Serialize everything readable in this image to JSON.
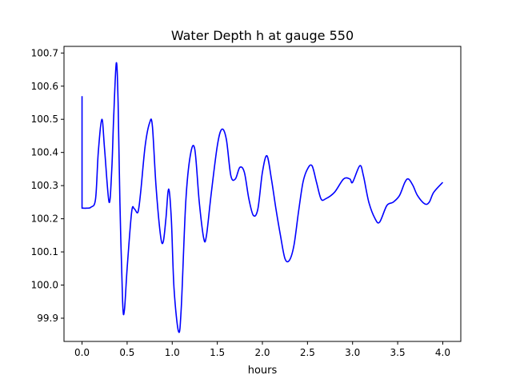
{
  "chart_data": {
    "type": "line",
    "title": "Water Depth h at gauge 550",
    "xlabel": "hours",
    "ylabel": "",
    "xlim": [
      -0.2,
      4.2
    ],
    "ylim": [
      99.83,
      100.72
    ],
    "xticks": [
      0.0,
      0.5,
      1.0,
      1.5,
      2.0,
      2.5,
      3.0,
      3.5,
      4.0
    ],
    "xtick_labels": [
      "0.0",
      "0.5",
      "1.0",
      "1.5",
      "2.0",
      "2.5",
      "3.0",
      "3.5",
      "4.0"
    ],
    "yticks": [
      99.9,
      100.0,
      100.1,
      100.2,
      100.3,
      100.4,
      100.5,
      100.6,
      100.7
    ],
    "ytick_labels": [
      "99.9",
      "100.0",
      "100.1",
      "100.2",
      "100.3",
      "100.4",
      "100.5",
      "100.6",
      "100.7"
    ],
    "grid": false,
    "series": [
      {
        "color": "#0000ff",
        "x": [
          0.0,
          0.0,
          0.05,
          0.1,
          0.15,
          0.18,
          0.22,
          0.25,
          0.3,
          0.33,
          0.35,
          0.38,
          0.4,
          0.42,
          0.45,
          0.47,
          0.5,
          0.55,
          0.58,
          0.62,
          0.65,
          0.7,
          0.75,
          0.78,
          0.82,
          0.87,
          0.9,
          0.93,
          0.96,
          0.99,
          1.02,
          1.07,
          1.1,
          1.15,
          1.2,
          1.25,
          1.3,
          1.35,
          1.38,
          1.43,
          1.5,
          1.55,
          1.6,
          1.65,
          1.7,
          1.75,
          1.8,
          1.85,
          1.9,
          1.95,
          2.0,
          2.05,
          2.1,
          2.15,
          2.2,
          2.25,
          2.3,
          2.35,
          2.4,
          2.45,
          2.5,
          2.55,
          2.6,
          2.65,
          2.7,
          2.8,
          2.9,
          2.97,
          3.0,
          3.08,
          3.12,
          3.18,
          3.25,
          3.3,
          3.38,
          3.45,
          3.52,
          3.58,
          3.62,
          3.67,
          3.72,
          3.8,
          3.85,
          3.9,
          4.0
        ],
        "y": [
          100.57,
          100.232,
          100.232,
          100.235,
          100.26,
          100.4,
          100.5,
          100.41,
          100.25,
          100.35,
          100.5,
          100.67,
          100.55,
          100.25,
          99.95,
          99.925,
          100.05,
          100.22,
          100.23,
          100.22,
          100.28,
          100.42,
          100.49,
          100.48,
          100.3,
          100.15,
          100.13,
          100.2,
          100.29,
          100.2,
          99.99,
          99.86,
          99.93,
          100.25,
          100.39,
          100.41,
          100.25,
          100.14,
          100.15,
          100.27,
          100.42,
          100.47,
          100.44,
          100.33,
          100.32,
          100.355,
          100.34,
          100.26,
          100.21,
          100.23,
          100.34,
          100.39,
          100.32,
          100.23,
          100.15,
          100.08,
          100.075,
          100.12,
          100.22,
          100.31,
          100.35,
          100.36,
          100.31,
          100.26,
          100.26,
          100.28,
          100.32,
          100.32,
          100.31,
          100.36,
          100.33,
          100.25,
          100.2,
          100.19,
          100.24,
          100.25,
          100.27,
          100.31,
          100.32,
          100.3,
          100.27,
          100.245,
          100.25,
          100.28,
          100.31
        ]
      }
    ]
  }
}
